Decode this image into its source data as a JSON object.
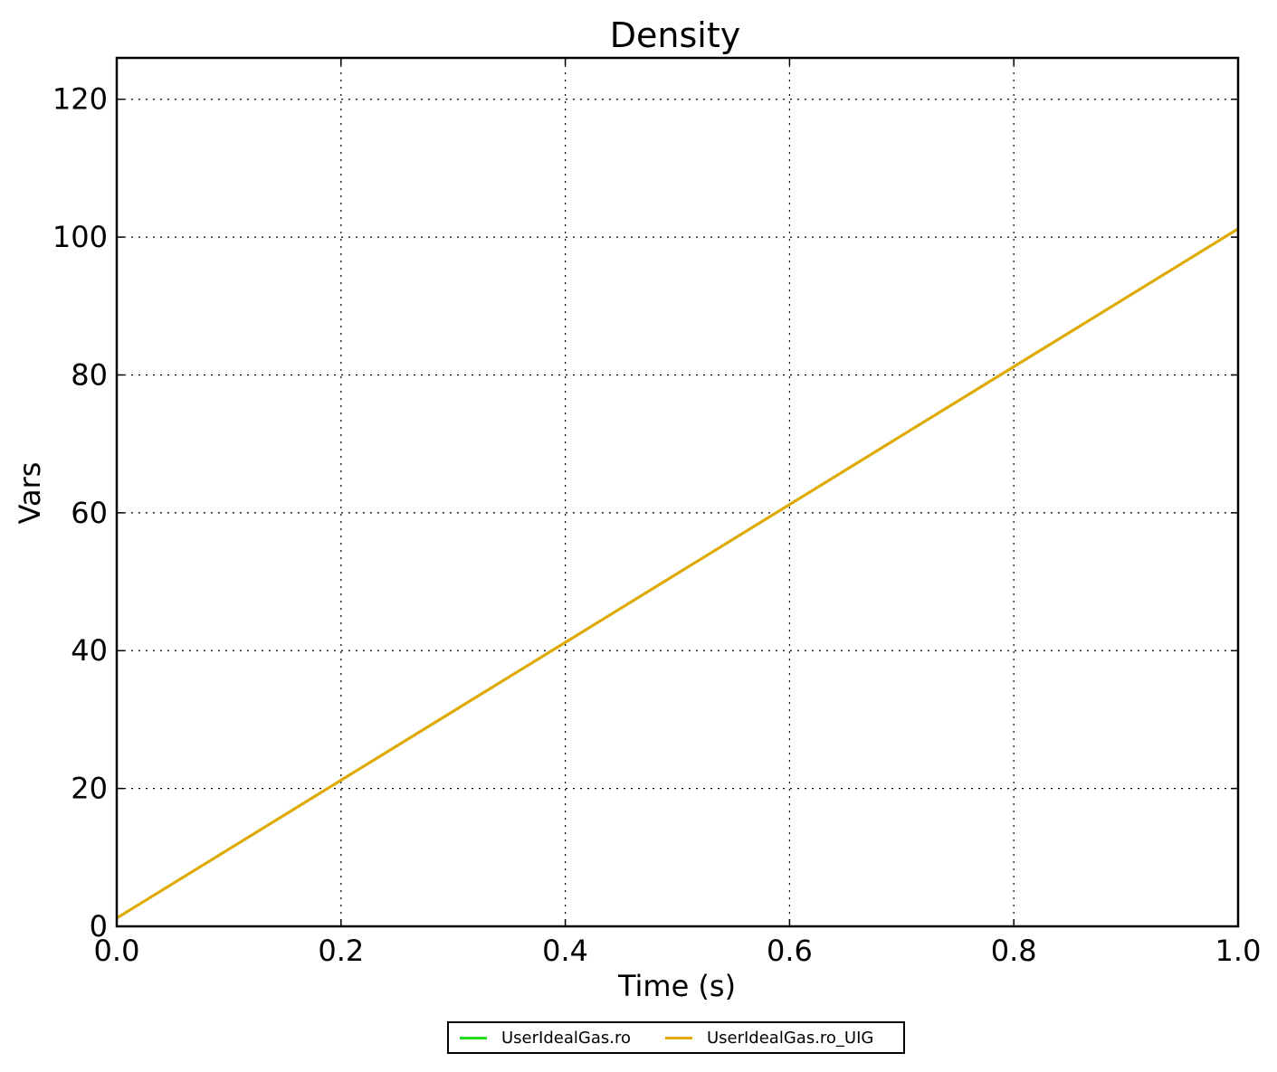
{
  "chart_data": {
    "type": "line",
    "title": "Density",
    "xlabel": "Time (s)",
    "ylabel": "Vars",
    "xlim": [
      0.0,
      1.0
    ],
    "ylim": [
      0,
      126
    ],
    "xticks": [
      "0.0",
      "0.2",
      "0.4",
      "0.6",
      "0.8",
      "1.0"
    ],
    "xtick_values": [
      0.0,
      0.2,
      0.4,
      0.6,
      0.8,
      1.0
    ],
    "yticks": [
      "0",
      "20",
      "40",
      "60",
      "80",
      "100",
      "120"
    ],
    "ytick_values": [
      0,
      20,
      40,
      60,
      80,
      100,
      120
    ],
    "grid": true,
    "legend_position": "bottom-center",
    "series": [
      {
        "name": "UserIdealGas.ro",
        "color": "#22dd22",
        "x": [
          0.0,
          1.0
        ],
        "y": [
          1.2,
          101.2
        ]
      },
      {
        "name": "UserIdealGas.ro_UIG",
        "color": "#e6a800",
        "x": [
          0.0,
          1.0
        ],
        "y": [
          1.2,
          101.2
        ]
      }
    ]
  }
}
